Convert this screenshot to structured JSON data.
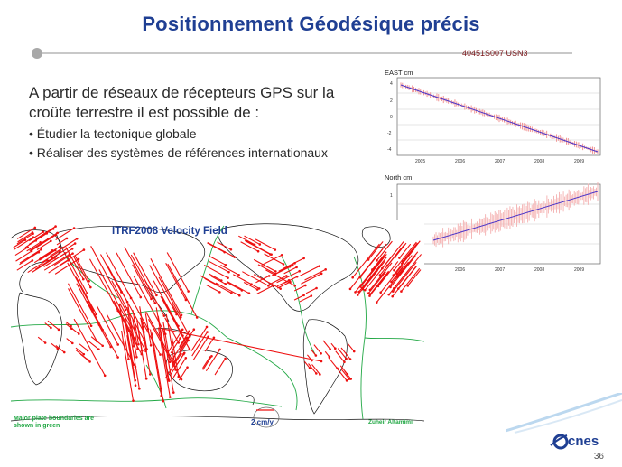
{
  "slide": {
    "title": "Positionnement Géodésique précis",
    "page_number": "36"
  },
  "body": {
    "lead": "A partir de réseaux de récepteurs GPS sur la croûte terrestre il est possible de :",
    "bullets": [
      "Étudier la tectonique globale",
      "Réaliser des systèmes de références internationaux"
    ]
  },
  "timeseries": {
    "station": "40451S007 USN3",
    "east": {
      "label": "EAST cm",
      "y_ticks": [
        "4",
        "2",
        "0",
        "-2",
        "-4"
      ],
      "x_ticks": [
        "2005",
        "2006",
        "2007",
        "2008",
        "2009"
      ]
    },
    "north": {
      "label": "North cm",
      "y_ticks": [
        "1",
        "0"
      ],
      "x_ticks": [
        "2006",
        "2007",
        "2008",
        "2009"
      ]
    }
  },
  "map": {
    "title": "ITRF2008 Velocity Field",
    "legend_note_1": "Major plate boundaries are",
    "legend_note_2": "shown in green",
    "scale_label": "2 cm/y",
    "author": "Zuheir Altamimi"
  },
  "logo": {
    "text": "cnes"
  },
  "colors": {
    "title": "#1f3f93",
    "vectors": "#ee1010",
    "plate_boundaries": "#22a845",
    "station_label": "#7a1418"
  }
}
